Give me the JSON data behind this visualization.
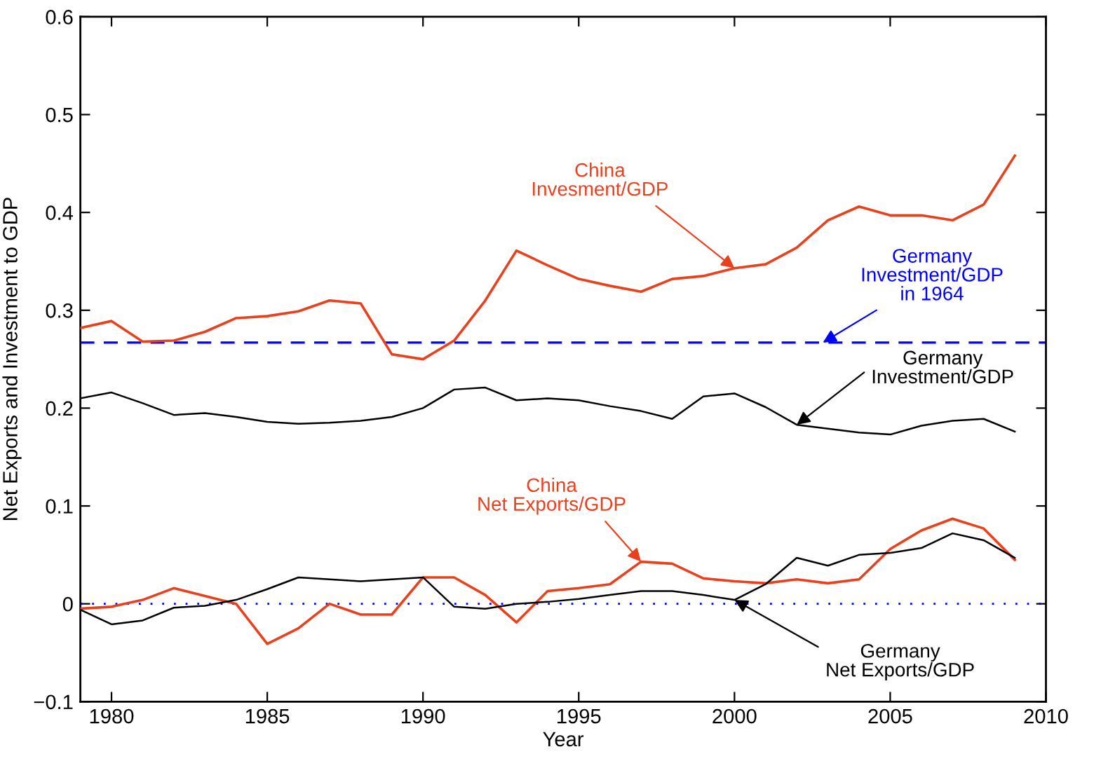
{
  "chart_data": {
    "type": "line",
    "xlabel": "Year",
    "ylabel": "Net Exports and Investment to GDP",
    "x": [
      1979,
      1980,
      1981,
      1982,
      1983,
      1984,
      1985,
      1986,
      1987,
      1988,
      1989,
      1990,
      1991,
      1992,
      1993,
      1994,
      1995,
      1996,
      1997,
      1998,
      1999,
      2000,
      2001,
      2002,
      2003,
      2004,
      2005,
      2006,
      2007,
      2008,
      2009
    ],
    "series": [
      {
        "name": "China\nInvesment/GDP",
        "color": "#e8411e",
        "values": [
          0.282,
          0.289,
          0.268,
          0.269,
          0.278,
          0.292,
          0.294,
          0.299,
          0.31,
          0.307,
          0.255,
          0.25,
          0.269,
          0.31,
          0.361,
          0.346,
          0.332,
          0.325,
          0.319,
          0.332,
          0.335,
          0.343,
          0.347,
          0.364,
          0.392,
          0.406,
          0.397,
          0.397,
          0.392,
          0.408,
          0.458
        ]
      },
      {
        "name": "Germany\nInvestment/GDP",
        "color": "#000000",
        "values": [
          0.21,
          0.216,
          0.205,
          0.193,
          0.195,
          0.191,
          0.186,
          0.184,
          0.185,
          0.187,
          0.191,
          0.2,
          0.219,
          0.221,
          0.208,
          0.21,
          0.208,
          0.202,
          0.197,
          0.189,
          0.212,
          0.215,
          0.201,
          0.183,
          0.179,
          0.175,
          0.173,
          0.182,
          0.187,
          0.189,
          0.176
        ]
      },
      {
        "name": "China\nNet Exports/GDP",
        "color": "#e8411e",
        "values": [
          -0.005,
          -0.003,
          0.004,
          0.016,
          0.008,
          0.0,
          -0.041,
          -0.025,
          0.0,
          -0.011,
          -0.011,
          0.027,
          0.027,
          0.009,
          -0.019,
          0.013,
          0.016,
          0.02,
          0.043,
          0.041,
          0.026,
          0.023,
          0.021,
          0.025,
          0.021,
          0.025,
          0.056,
          0.075,
          0.087,
          0.077,
          0.045
        ]
      },
      {
        "name": "Germany\nNet Exports/GDP",
        "color": "#000000",
        "values": [
          -0.006,
          -0.021,
          -0.017,
          -0.004,
          -0.002,
          0.004,
          0.015,
          0.027,
          0.025,
          0.023,
          0.025,
          0.027,
          -0.003,
          -0.005,
          0.0,
          0.002,
          0.005,
          0.009,
          0.013,
          0.013,
          0.009,
          0.004,
          0.02,
          0.047,
          0.039,
          0.05,
          0.052,
          0.057,
          0.072,
          0.065,
          0.047
        ]
      }
    ],
    "xlim": [
      1979,
      2010
    ],
    "ylim": [
      -0.1,
      0.6
    ],
    "xticks": [
      1980,
      1985,
      1990,
      1995,
      2000,
      2005,
      2010
    ],
    "yticks": [
      {
        "value": -0.1,
        "label": "−0.1"
      },
      0,
      0.1,
      0.2,
      0.3,
      0.4,
      0.5,
      0.6
    ],
    "ref_lines": [
      {
        "axis": "y",
        "value": 0.267,
        "label": "Germany\nInvestment/GDP\nin 1964",
        "color": "#0000ff",
        "line_style": "dashed"
      },
      {
        "axis": "y",
        "value": 0,
        "color": "#0000ff",
        "line_style": "dotted"
      }
    ],
    "line_style": "solid"
  }
}
